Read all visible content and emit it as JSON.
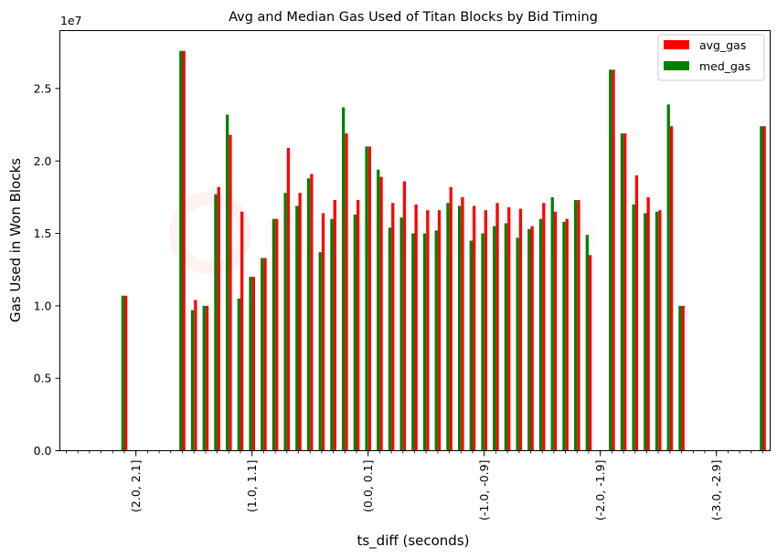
{
  "chart_data": {
    "type": "bar",
    "title": "Avg and Median Gas Used of Titan Blocks by Bid Timing",
    "xlabel": "ts_diff (seconds)",
    "ylabel": "Gas Used in Won Blocks",
    "y_offset_text": "1e7",
    "ylim": [
      0,
      29000000.0
    ],
    "yticks": [
      0,
      5000000,
      10000000,
      15000000,
      20000000,
      25000000
    ],
    "ytick_labels": [
      "0.0",
      "0.5",
      "1.0",
      "1.5",
      "2.0",
      "2.5"
    ],
    "xtick_labels": [
      "(2.0, 2.1]",
      "(1.0, 1.1]",
      "(0.0, 0.1]",
      "(-1.0, -0.9]",
      "(-2.0, -1.9]",
      "(-3.0, -2.9]"
    ],
    "x_bins_from": 2.6,
    "x_bins_to": -2.9,
    "x_bin_width": 0.1,
    "legend_position": "top-right",
    "series": [
      {
        "name": "avg_gas",
        "color": "#ff0000",
        "values": [
          null,
          null,
          null,
          null,
          null,
          10700000,
          null,
          null,
          null,
          null,
          27600000,
          10400000,
          10000000,
          18200000,
          21800000,
          16500000,
          12000000,
          13300000,
          16000000,
          20900000,
          17800000,
          19100000,
          16400000,
          17300000,
          21900000,
          17300000,
          21000000,
          18900000,
          17100000,
          18600000,
          17000000,
          16600000,
          16600000,
          18200000,
          17500000,
          16900000,
          16600000,
          17100000,
          16800000,
          16700000,
          15500000,
          17100000,
          16500000,
          16000000,
          17300000,
          13500000,
          null,
          26300000,
          21900000,
          19000000,
          17500000,
          16600000,
          22400000,
          10000000,
          null,
          null,
          null,
          null,
          null,
          null,
          22400000
        ]
      },
      {
        "name": "med_gas",
        "color": "#008000",
        "values": [
          null,
          null,
          null,
          null,
          null,
          10700000,
          null,
          null,
          null,
          null,
          27600000,
          9700000,
          10000000,
          17700000,
          23200000,
          10500000,
          12000000,
          13300000,
          16000000,
          17800000,
          16900000,
          18800000,
          13700000,
          16000000,
          23700000,
          16300000,
          21000000,
          19400000,
          15400000,
          16100000,
          15000000,
          15000000,
          15200000,
          17100000,
          16900000,
          14500000,
          15000000,
          15500000,
          15700000,
          14700000,
          15300000,
          16000000,
          17500000,
          15800000,
          17300000,
          14900000,
          null,
          26300000,
          21900000,
          17000000,
          16400000,
          16500000,
          23900000,
          10000000,
          null,
          null,
          null,
          null,
          null,
          null,
          22400000
        ]
      }
    ]
  }
}
